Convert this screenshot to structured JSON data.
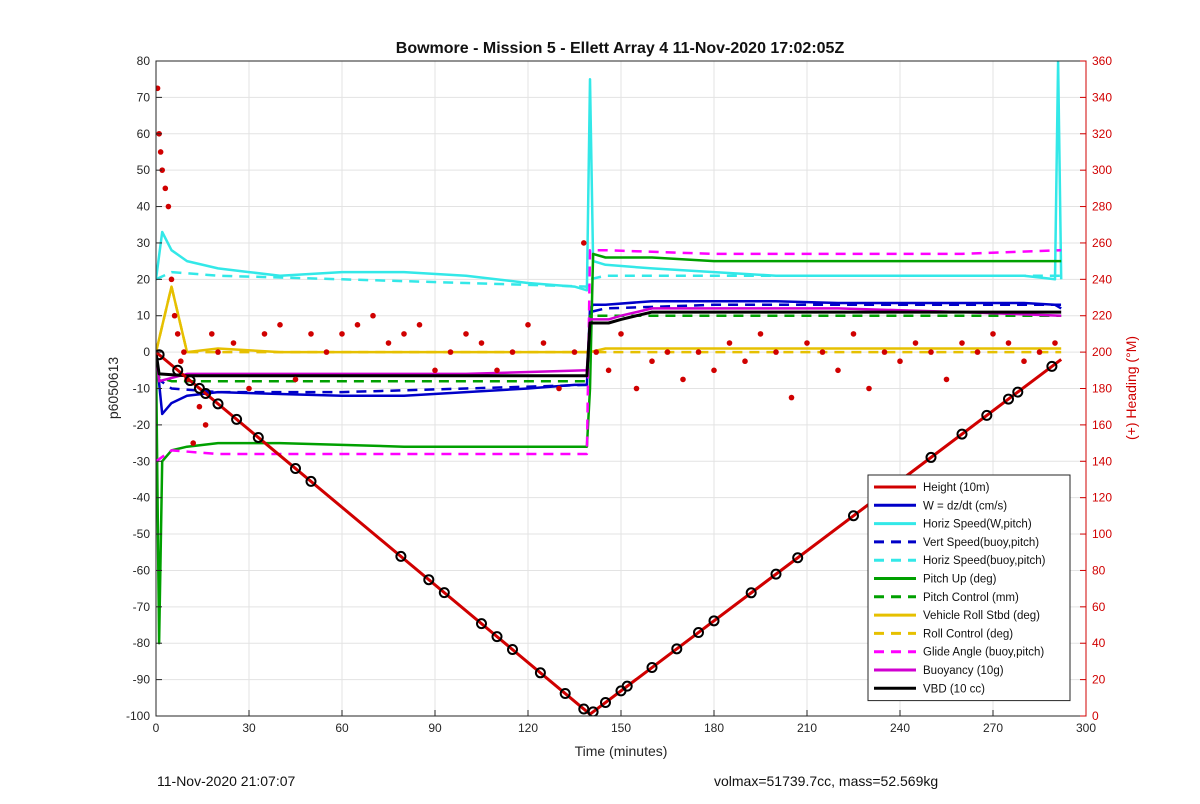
{
  "chart_data": {
    "type": "line",
    "title": "Bowmore - Mission 5 - Ellett Array 4 11-Nov-2020 17:02:05Z",
    "xlabel": "Time (minutes)",
    "ylabel_left": "p6050613",
    "ylabel_right": "(+) Heading (°M)",
    "xlim": [
      0,
      300
    ],
    "ylim_left": [
      -100,
      80
    ],
    "ylim_right": [
      0,
      360
    ],
    "x_ticks": [
      "0",
      "30",
      "60",
      "90",
      "120",
      "150",
      "180",
      "210",
      "240",
      "270",
      "300"
    ],
    "y_ticks_left": [
      "80",
      "70",
      "60",
      "50",
      "40",
      "30",
      "20",
      "10",
      "0",
      "-10",
      "-20",
      "-30",
      "-40",
      "-50",
      "-60",
      "-70",
      "-80",
      "-90",
      "-100"
    ],
    "y_ticks_right": [
      "360",
      "340",
      "320",
      "300",
      "280",
      "260",
      "240",
      "220",
      "200",
      "180",
      "160",
      "140",
      "120",
      "100",
      "80",
      "60",
      "40",
      "20",
      "0"
    ],
    "grid": true,
    "legend_position": "lower-right",
    "series": [
      {
        "name": "Height (10m)",
        "color": "#d00000",
        "style": "solid",
        "axis": "left",
        "x": [
          0,
          140,
          292
        ],
        "y": [
          0,
          -99.5,
          -2
        ]
      },
      {
        "name": "W = dz/dt (cm/s)",
        "color": "#0000c8",
        "style": "solid",
        "axis": "left",
        "x": [
          0,
          2,
          5,
          10,
          20,
          40,
          60,
          80,
          100,
          120,
          135,
          139,
          140,
          141,
          145,
          160,
          180,
          200,
          220,
          250,
          280,
          290,
          292
        ],
        "y": [
          0,
          -17,
          -14,
          -12,
          -11,
          -11.5,
          -12,
          -12,
          -11,
          -10,
          -9,
          -9,
          12,
          13,
          13,
          14,
          14,
          14,
          13.5,
          13.5,
          13.5,
          13,
          12
        ]
      },
      {
        "name": "Horiz Speed(W,pitch)",
        "color": "#33e8e8",
        "style": "solid",
        "axis": "left",
        "x": [
          0,
          2,
          5,
          10,
          20,
          30,
          40,
          60,
          80,
          100,
          120,
          135,
          139,
          140,
          141,
          145,
          160,
          180,
          200,
          220,
          250,
          280,
          290,
          291,
          292
        ],
        "y": [
          20,
          33,
          28,
          25,
          23,
          22,
          21,
          22,
          22,
          21,
          19,
          18,
          17,
          75,
          25,
          24,
          23,
          22,
          21,
          21,
          21,
          21,
          20,
          80,
          20
        ]
      },
      {
        "name": "Vert Speed(buoy,pitch)",
        "color": "#0000c8",
        "style": "dashed",
        "axis": "left",
        "x": [
          0,
          5,
          20,
          60,
          100,
          139,
          140,
          145,
          180,
          220,
          260,
          292
        ],
        "y": [
          -7,
          -10,
          -11,
          -11,
          -10,
          -9,
          11,
          12,
          13,
          13,
          13,
          13
        ]
      },
      {
        "name": "Horiz Speed(buoy,pitch)",
        "color": "#33e8e8",
        "style": "dashed",
        "axis": "left",
        "x": [
          0,
          5,
          20,
          60,
          100,
          139,
          140,
          145,
          180,
          220,
          260,
          292
        ],
        "y": [
          20,
          22,
          21,
          20,
          19,
          18,
          20,
          21,
          21,
          21,
          21,
          21
        ]
      },
      {
        "name": "Pitch Up (deg)",
        "color": "#00a000",
        "style": "solid",
        "axis": "left",
        "x": [
          0,
          1,
          2,
          5,
          10,
          20,
          40,
          60,
          80,
          100,
          120,
          135,
          139,
          140,
          141,
          145,
          160,
          180,
          200,
          220,
          250,
          280,
          292
        ],
        "y": [
          0,
          -80,
          -30,
          -27,
          -26,
          -25,
          -25,
          -25.5,
          -26,
          -26,
          -26,
          -26,
          -26,
          -10,
          27,
          26,
          26,
          25,
          25,
          25,
          25,
          25,
          25
        ]
      },
      {
        "name": "Pitch Control (mm)",
        "color": "#00a000",
        "style": "dashed",
        "axis": "left",
        "x": [
          0,
          1,
          5,
          20,
          60,
          100,
          139,
          140,
          145,
          180,
          220,
          260,
          292
        ],
        "y": [
          0,
          -7,
          -8,
          -8,
          -8,
          -8,
          -8,
          10,
          10,
          10,
          10,
          10,
          10
        ]
      },
      {
        "name": "Vehicle Roll Stbd (deg)",
        "color": "#e6c000",
        "style": "solid",
        "axis": "left",
        "x": [
          0,
          5,
          10,
          20,
          40,
          60,
          80,
          100,
          120,
          139,
          140,
          145,
          160,
          180,
          200,
          220,
          250,
          280,
          292
        ],
        "y": [
          0,
          18,
          0,
          1,
          0,
          0,
          0,
          0,
          0,
          0,
          0,
          1,
          1,
          1,
          1,
          1,
          1,
          1,
          1
        ]
      },
      {
        "name": "Roll Control (deg)",
        "color": "#e6c000",
        "style": "dashed",
        "axis": "left",
        "x": [
          0,
          5,
          10,
          20,
          40,
          60,
          80,
          100,
          120,
          139,
          140,
          145,
          160,
          180,
          200,
          220,
          250,
          280,
          292
        ],
        "y": [
          0,
          18,
          0,
          0,
          0,
          0,
          0,
          0,
          0,
          0,
          0,
          0,
          0,
          0,
          0,
          0,
          0,
          0,
          0
        ]
      },
      {
        "name": "Glide Angle (buoy,pitch)",
        "color": "#ff00ff",
        "style": "dashed",
        "axis": "left",
        "x": [
          0,
          5,
          20,
          60,
          100,
          139,
          140,
          145,
          180,
          220,
          260,
          292
        ],
        "y": [
          -30,
          -27,
          -28,
          -28,
          -28,
          -28,
          28,
          28,
          27,
          27,
          27,
          28
        ]
      },
      {
        "name": "Buoyancy (10g)",
        "color": "#d000d0",
        "style": "solid",
        "axis": "left",
        "x": [
          0,
          1,
          10,
          60,
          100,
          139,
          140,
          146,
          150,
          155,
          160,
          180,
          220,
          260,
          292
        ],
        "y": [
          0,
          -8,
          -6,
          -6,
          -6,
          -5,
          9,
          9,
          10,
          11,
          12,
          12,
          12,
          11,
          10
        ]
      },
      {
        "name": "VBD (10 cc)",
        "color": "#000000",
        "style": "solid",
        "axis": "left",
        "x": [
          0,
          1,
          10,
          60,
          100,
          139,
          140,
          146,
          150,
          155,
          160,
          180,
          220,
          260,
          292
        ],
        "y": [
          0,
          -6,
          -6.5,
          -6.5,
          -6.5,
          -6.5,
          8,
          8,
          9,
          10,
          11,
          11,
          11,
          11,
          11
        ]
      }
    ],
    "heading_series": {
      "name": "Heading",
      "color": "#d00000",
      "axis": "right",
      "x": [
        0.5,
        1,
        1.5,
        2,
        3,
        4,
        5,
        6,
        7,
        8,
        9,
        10,
        12,
        14,
        16,
        18,
        20,
        25,
        30,
        35,
        40,
        45,
        50,
        55,
        60,
        65,
        70,
        75,
        80,
        85,
        90,
        95,
        100,
        105,
        110,
        115,
        120,
        125,
        130,
        135,
        138,
        142,
        146,
        150,
        155,
        160,
        165,
        170,
        175,
        180,
        185,
        190,
        195,
        200,
        205,
        210,
        215,
        220,
        225,
        230,
        235,
        240,
        245,
        250,
        255,
        260,
        265,
        270,
        275,
        280,
        285,
        290
      ],
      "y": [
        345,
        320,
        310,
        300,
        290,
        280,
        240,
        220,
        210,
        195,
        200,
        185,
        150,
        170,
        160,
        210,
        200,
        205,
        180,
        210,
        215,
        185,
        210,
        200,
        210,
        215,
        220,
        205,
        210,
        215,
        190,
        200,
        210,
        205,
        190,
        200,
        215,
        205,
        180,
        200,
        260,
        200,
        190,
        210,
        180,
        195,
        200,
        185,
        200,
        190,
        205,
        195,
        210,
        200,
        175,
        205,
        200,
        190,
        210,
        180,
        200,
        195,
        205,
        200,
        185,
        205,
        200,
        210,
        205,
        195,
        200,
        205
      ]
    },
    "annotations": {
      "footer_left": "11-Nov-2020 21:07:07",
      "footer_right": "volmax=51739.7cc, mass=52.569kg"
    }
  }
}
